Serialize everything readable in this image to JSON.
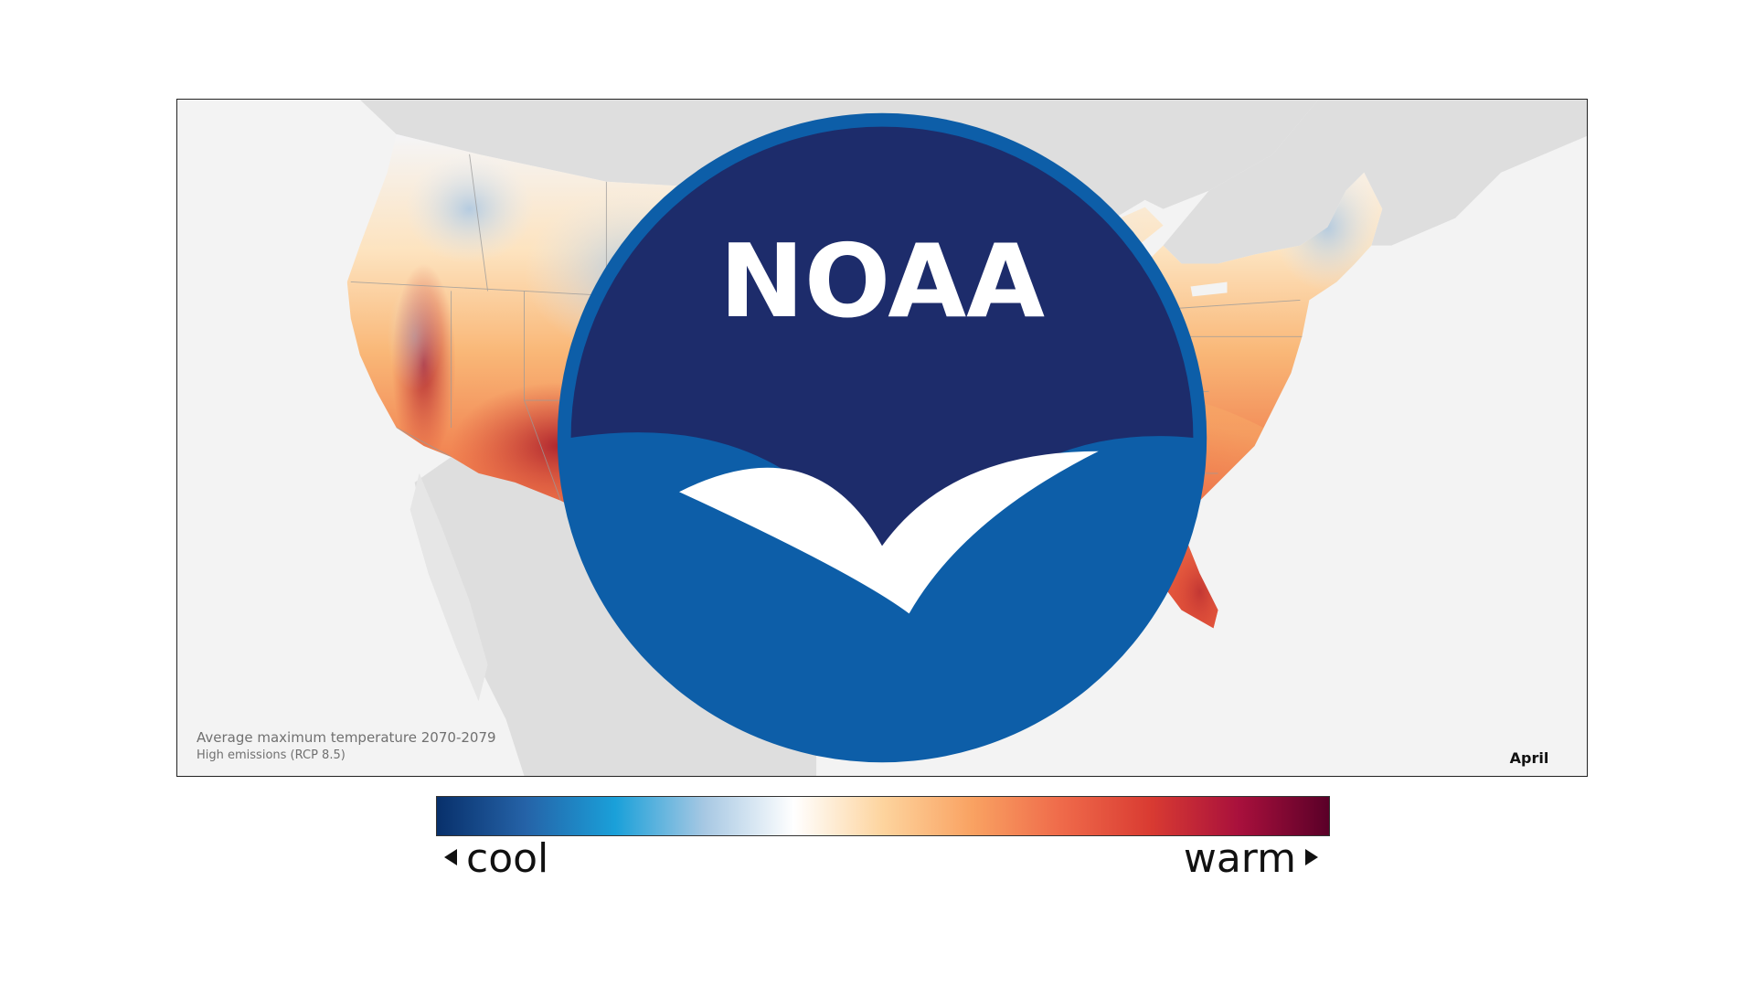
{
  "map": {
    "caption_title": "Average maximum temperature 2070-2079",
    "caption_subtitle": "High emissions (RCP 8.5)",
    "month": "April",
    "logo_text": "NOAA"
  },
  "legend": {
    "low_label": "cool",
    "high_label": "warm",
    "colors": [
      "#08306b",
      "#2563a8",
      "#1aa0d9",
      "#a7c8e3",
      "#ffffff",
      "#fdd49e",
      "#f9a262",
      "#ef6a4a",
      "#d93b32",
      "#a8103c",
      "#5a0028"
    ]
  }
}
